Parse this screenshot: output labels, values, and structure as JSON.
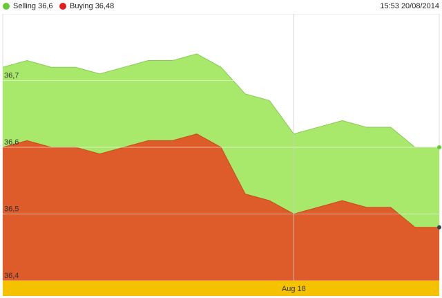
{
  "header": {
    "timestamp": "15:53 20/08/2014"
  },
  "chart_data": {
    "type": "area",
    "x": [
      0,
      1,
      2,
      3,
      4,
      5,
      6,
      7,
      8,
      9,
      10,
      11,
      12,
      13,
      14,
      15,
      16,
      17,
      18
    ],
    "series": [
      {
        "name": "Selling",
        "label": "Selling 36,6",
        "color": "#a8e86a",
        "marker_color": "#66cc33",
        "values": [
          36.72,
          36.73,
          36.72,
          36.72,
          36.71,
          36.72,
          36.73,
          36.73,
          36.74,
          36.72,
          36.68,
          36.67,
          36.62,
          36.63,
          36.64,
          36.63,
          36.63,
          36.6,
          36.6
        ]
      },
      {
        "name": "Buying",
        "label": "Buying 36,48",
        "color": "#de5c2a",
        "marker_color": "#e02020",
        "values": [
          36.6,
          36.61,
          36.6,
          36.6,
          36.59,
          36.6,
          36.61,
          36.61,
          36.62,
          36.6,
          36.53,
          36.52,
          36.5,
          36.51,
          36.52,
          36.51,
          36.51,
          36.48,
          36.48
        ]
      }
    ],
    "y_ticks": [
      "36,7",
      "36,6",
      "36,5",
      "36,4"
    ],
    "y_tick_values": [
      36.7,
      36.6,
      36.5,
      36.4
    ],
    "ylim": [
      36.4,
      36.8
    ],
    "x_tick_label": "Aug 18",
    "x_tick_index": 12,
    "grid": true,
    "legend_position": "top-left"
  }
}
